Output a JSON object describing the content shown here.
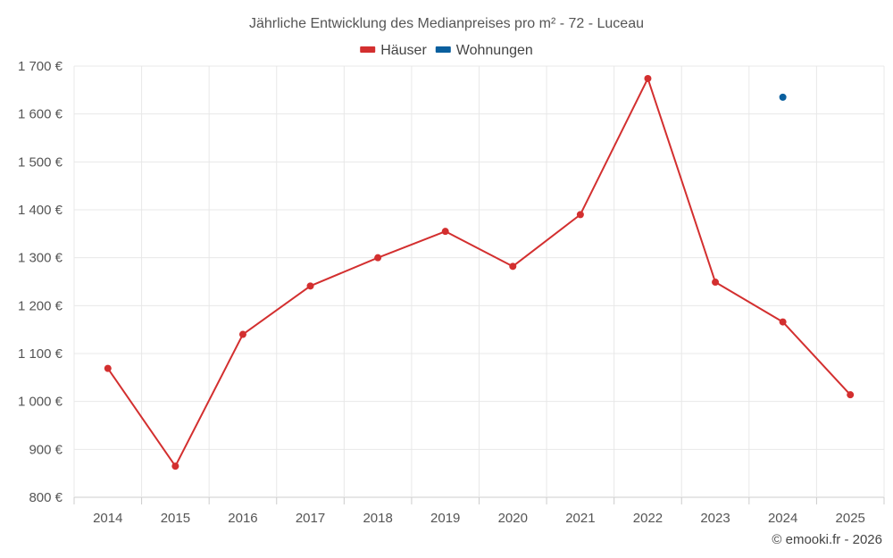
{
  "chart_data": {
    "type": "line",
    "title": "Jährliche Entwicklung des Medianpreises pro m² - 72 - Luceau",
    "categories": [
      "2014",
      "2015",
      "2016",
      "2017",
      "2018",
      "2019",
      "2020",
      "2021",
      "2022",
      "2023",
      "2024",
      "2025"
    ],
    "y_tick_labels": [
      "800 €",
      "900 €",
      "1 000 €",
      "1 100 €",
      "1 200 €",
      "1 300 €",
      "1 400 €",
      "1 500 €",
      "1 600 €",
      "1 700 €"
    ],
    "y_ticks": [
      800,
      900,
      1000,
      1100,
      1200,
      1300,
      1400,
      1500,
      1600,
      1700
    ],
    "ylim": [
      800,
      1700
    ],
    "xlabel": "",
    "ylabel": "",
    "grid": true,
    "legend_position": "top-center",
    "series": [
      {
        "name": "Häuser",
        "color": "#d32f2f",
        "values": [
          1069,
          865,
          1140,
          1241,
          1300,
          1355,
          1282,
          1390,
          1674,
          1249,
          1166,
          1014
        ]
      },
      {
        "name": "Wohnungen",
        "color": "#0a5f9e",
        "values": [
          null,
          null,
          null,
          null,
          null,
          null,
          null,
          null,
          null,
          null,
          1635,
          null
        ]
      }
    ],
    "credit": "© emooki.fr - 2026"
  }
}
